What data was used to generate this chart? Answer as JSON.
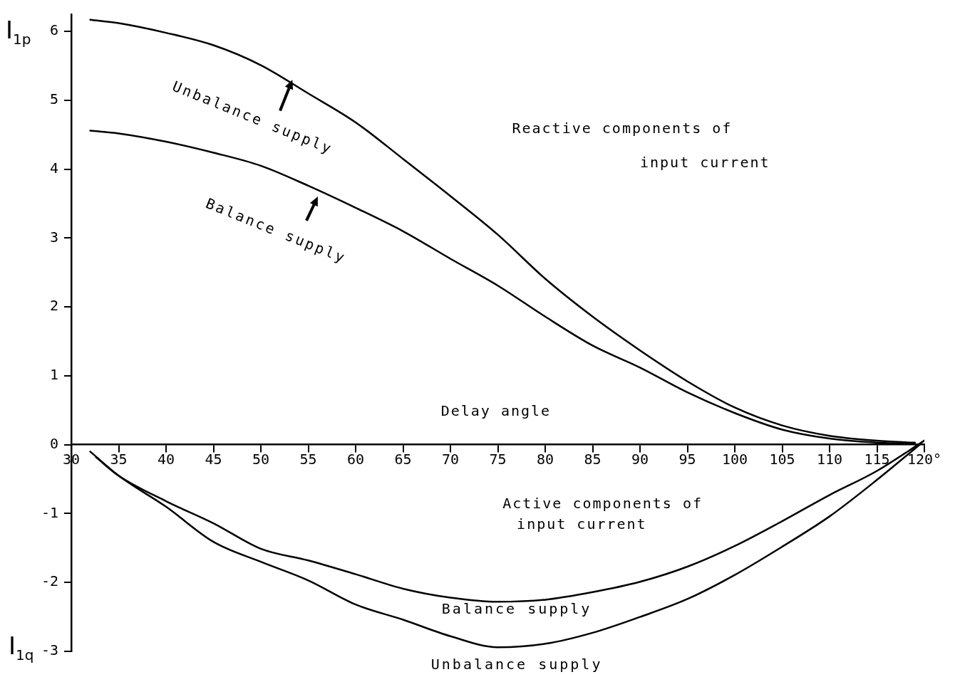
{
  "chart_data": {
    "type": "line",
    "xlabel": "Delay angle",
    "ylabel": "I$_{1p}$",
    "annotations": [
      "Reactive components of",
      "input current",
      "Active components of",
      "input current",
      "I$_{1q}$"
    ],
    "xlim": [
      30,
      120
    ],
    "ylim": [
      -3,
      6.25
    ],
    "xticks": [
      30,
      35,
      40,
      45,
      50,
      55,
      60,
      65,
      70,
      75,
      80,
      85,
      90,
      95,
      100,
      105,
      110,
      115,
      {
        "value": 120,
        "label": "120°"
      }
    ],
    "yticks": [
      -3,
      -2,
      -1,
      0,
      1,
      2,
      3,
      4,
      5,
      6
    ],
    "grid": false,
    "legend": false,
    "marker": "none",
    "line_style": "solid",
    "series": [
      {
        "name": "Unbalance supply",
        "color": "#000000",
        "x": [
          32,
          35,
          40,
          45,
          50,
          55,
          60,
          65,
          70,
          75,
          80,
          85,
          90,
          95,
          100,
          105,
          110,
          115,
          119
        ],
        "values": [
          6.17,
          6.12,
          5.98,
          5.8,
          5.51,
          5.1,
          4.68,
          4.15,
          3.61,
          3.05,
          2.41,
          1.86,
          1.37,
          0.92,
          0.54,
          0.28,
          0.13,
          0.06,
          0.03
        ]
      },
      {
        "name": "Balance supply",
        "color": "#000000",
        "x": [
          32,
          35,
          40,
          45,
          50,
          55,
          60,
          65,
          70,
          75,
          80,
          85,
          90,
          95,
          100,
          105,
          110,
          115,
          119
        ],
        "values": [
          4.56,
          4.52,
          4.4,
          4.24,
          4.05,
          3.76,
          3.44,
          3.1,
          2.7,
          2.31,
          1.86,
          1.44,
          1.12,
          0.76,
          0.46,
          0.22,
          0.09,
          0.03,
          0.01
        ]
      },
      {
        "name": "Balance supply",
        "color": "#000000",
        "x": [
          32.6,
          35,
          40,
          45,
          50,
          55,
          60,
          65,
          70,
          75,
          80,
          85,
          90,
          95,
          100,
          105,
          110,
          115,
          120
        ],
        "values": [
          -0.18,
          -0.45,
          -0.82,
          -1.14,
          -1.51,
          -1.68,
          -1.88,
          -2.09,
          -2.22,
          -2.28,
          -2.25,
          -2.14,
          -1.99,
          -1.77,
          -1.47,
          -1.11,
          -0.73,
          -0.38,
          0.06
        ]
      },
      {
        "name": "Unbalance supply",
        "color": "#000000",
        "x": [
          32,
          35,
          40,
          45,
          50,
          55,
          60,
          65,
          70,
          75,
          80,
          85,
          90,
          95,
          100,
          105,
          110,
          115,
          119.5
        ],
        "values": [
          -0.1,
          -0.45,
          -0.9,
          -1.41,
          -1.7,
          -1.97,
          -2.32,
          -2.54,
          -2.78,
          -2.94,
          -2.89,
          -2.73,
          -2.5,
          -2.24,
          -1.89,
          -1.48,
          -1.04,
          -0.51,
          0.0
        ]
      }
    ]
  }
}
